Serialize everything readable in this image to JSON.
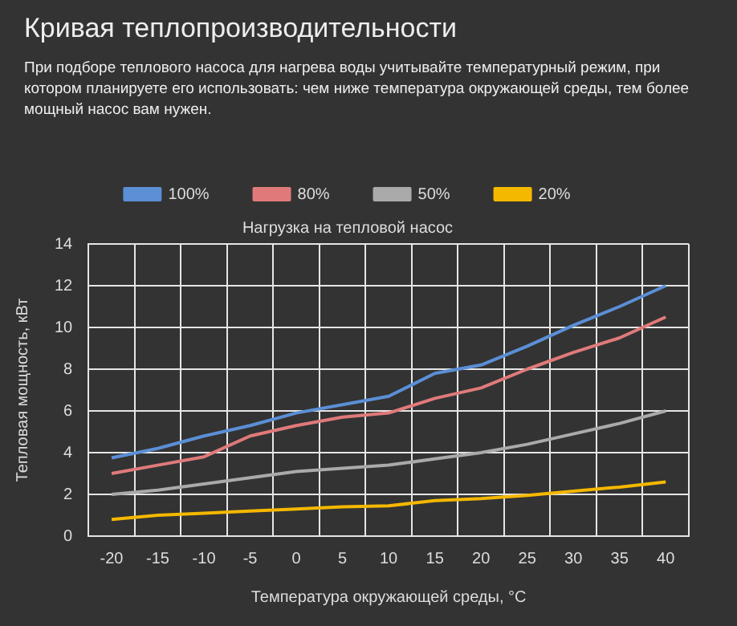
{
  "chart_data": {
    "type": "line",
    "title": "Кривая теплопроизводительности",
    "subtitle": "При подборе теплового насоса для нагрева воды учитывайте температурный режим, при котором планируете его использовать: чем ниже температура окружающей среды, тем более мощный насос вам нужен.",
    "legend_title": "Нагрузка на тепловой насос",
    "xlabel": "Температура окружающей среды, °C",
    "ylabel": "Тепловая мощность, кВт",
    "categories": [
      "-20",
      "-15",
      "-10",
      "-5",
      "0",
      "5",
      "10",
      "15",
      "20",
      "25",
      "30",
      "35",
      "40"
    ],
    "series": [
      {
        "name": "100%",
        "color": "#5b8fd6",
        "values": [
          3.75,
          4.2,
          4.8,
          5.3,
          5.9,
          6.3,
          6.7,
          7.8,
          8.2,
          9.1,
          10.1,
          11,
          12
        ]
      },
      {
        "name": "80%",
        "color": "#e07a7a",
        "values": [
          3.0,
          3.4,
          3.8,
          4.8,
          5.3,
          5.7,
          5.9,
          6.6,
          7.1,
          8.0,
          8.8,
          9.5,
          10.5
        ]
      },
      {
        "name": "50%",
        "color": "#aaaaaa",
        "values": [
          2.0,
          2.2,
          2.5,
          2.8,
          3.1,
          3.25,
          3.4,
          3.7,
          4.0,
          4.4,
          4.9,
          5.4,
          6.0
        ]
      },
      {
        "name": "20%",
        "color": "#f5b800",
        "values": [
          0.8,
          1.0,
          1.1,
          1.2,
          1.3,
          1.4,
          1.45,
          1.7,
          1.8,
          1.95,
          2.15,
          2.35,
          2.6
        ]
      }
    ],
    "ylim": [
      0,
      14
    ],
    "yticks": [
      0,
      2,
      4,
      6,
      8,
      10,
      12,
      14
    ],
    "grid": true,
    "legend": "top",
    "marker": "none",
    "line_style": "solid"
  }
}
